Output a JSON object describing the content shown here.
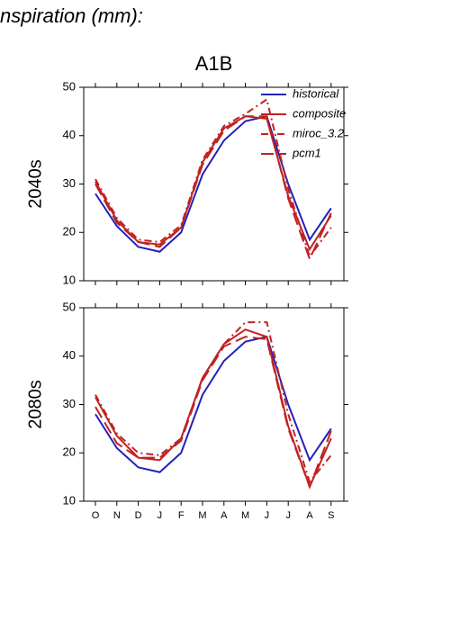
{
  "page_title": "nspiration (mm):",
  "chart_data": [
    {
      "type": "line",
      "title": "A1B",
      "ylabel": "2040s",
      "ylim": [
        10,
        50
      ],
      "yticks": [
        10,
        20,
        30,
        40,
        50
      ],
      "legend": "upper right",
      "series": [
        {
          "name": "historical",
          "color": "#2222bb",
          "dash": "none",
          "values": [
            28,
            21.3,
            17,
            16,
            20,
            32,
            39,
            43,
            44,
            30,
            18.5,
            25
          ]
        },
        {
          "name": "composite",
          "color": "#c02222",
          "dash": "none",
          "values": [
            30.5,
            22.5,
            18,
            17.5,
            21,
            34.5,
            41.5,
            44,
            43.5,
            27.5,
            16.5,
            23.5
          ]
        },
        {
          "name": "miroc_3.2",
          "color": "#c02222",
          "dash": "8,4,2,4",
          "values": [
            31,
            23,
            18.5,
            18,
            21.5,
            35,
            42,
            44.5,
            47.5,
            29,
            15,
            21
          ]
        },
        {
          "name": "pcm1",
          "color": "#c02222",
          "dash": "14,6",
          "values": [
            30,
            22,
            18,
            17,
            21,
            34,
            41,
            44,
            44,
            27,
            14.5,
            24
          ]
        }
      ]
    },
    {
      "type": "line",
      "ylabel": "2080s",
      "categories": [
        "O",
        "N",
        "D",
        "J",
        "F",
        "M",
        "A",
        "M",
        "J",
        "J",
        "A",
        "S"
      ],
      "ylim": [
        10,
        50
      ],
      "yticks": [
        10,
        20,
        30,
        40,
        50
      ],
      "series": [
        {
          "color": "#2222bb",
          "dash": "none",
          "values": [
            28,
            21,
            17,
            16,
            20,
            32,
            39,
            43,
            44,
            30,
            18.5,
            25
          ]
        },
        {
          "color": "#c02222",
          "dash": "none",
          "values": [
            31.5,
            23.5,
            19,
            18.5,
            23,
            35.5,
            42.5,
            45.5,
            44,
            25.5,
            13,
            23
          ]
        },
        {
          "color": "#c02222",
          "dash": "8,4,2,4",
          "values": [
            32,
            24,
            20,
            19.5,
            23,
            35.5,
            42.5,
            47,
            47,
            28,
            14,
            19.5
          ]
        },
        {
          "color": "#c02222",
          "dash": "14,6",
          "values": [
            29.5,
            22,
            19,
            19,
            22.5,
            35,
            42,
            44,
            43.5,
            25,
            13,
            24.5
          ]
        }
      ]
    }
  ]
}
